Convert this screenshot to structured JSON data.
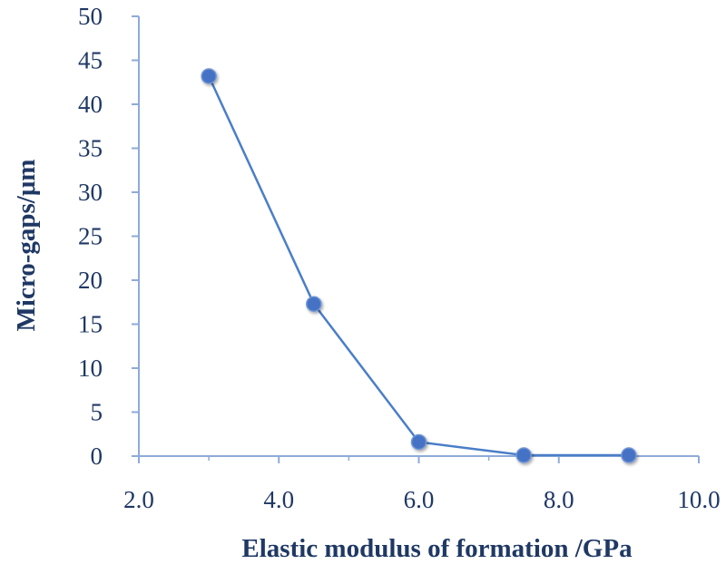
{
  "chart_data": {
    "type": "scatter",
    "mode": "lines+markers",
    "title": "",
    "xlabel": "Elastic modulus of formation /GPa",
    "ylabel": "Micro-gaps/μm",
    "xlim": [
      2.0,
      10.0
    ],
    "ylim": [
      0,
      50
    ],
    "x_ticks": [
      "2.0",
      "4.0",
      "6.0",
      "8.0",
      "10.0"
    ],
    "y_ticks": [
      "0",
      "5",
      "10",
      "15",
      "20",
      "25",
      "30",
      "35",
      "40",
      "45",
      "50"
    ],
    "grid": false,
    "legend": "none",
    "series": [
      {
        "x": [
          3.0,
          4.5,
          6.0,
          7.5,
          9.0
        ],
        "y": [
          43.2,
          17.3,
          1.6,
          0.1,
          0.1
        ]
      }
    ],
    "colors": {
      "line": "#4a7ec8",
      "marker": "#4472c4",
      "axis": "#8eaad8",
      "text": "#1f3864"
    }
  }
}
